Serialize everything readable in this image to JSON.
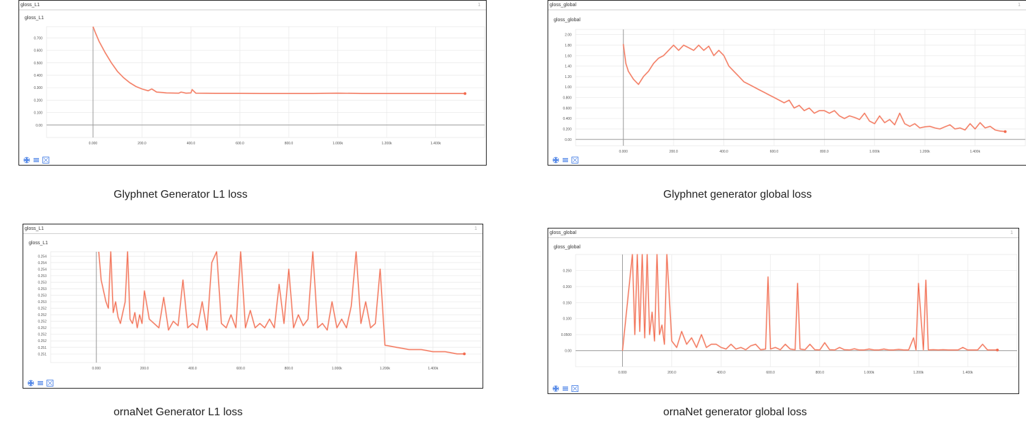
{
  "colors": {
    "line": "#f26a4f",
    "line_faint": "#f9c4b6",
    "grid": "#e8e8e8",
    "axis": "#999999",
    "controls": "#5b8de8"
  },
  "panels": [
    {
      "header": "gloss_L1",
      "index": "1",
      "subtitle": "gloss_L1",
      "caption": "Glyphnet Generator L1 loss"
    },
    {
      "header": "gloss_global",
      "index": "1",
      "subtitle": "gloss_global",
      "caption": "Glyphnet generator global loss"
    },
    {
      "header": "gloss_L1",
      "index": "1",
      "subtitle": "gloss_L1",
      "caption": "ornaNet Generator L1 loss"
    },
    {
      "header": "gloss_global",
      "index": "1",
      "subtitle": "gloss_global",
      "caption": "ornaNet generator global loss"
    }
  ],
  "controls": [
    "expand-icon",
    "list-icon",
    "fit-icon"
  ],
  "chart_data": [
    {
      "type": "line",
      "title": "gloss_L1",
      "x_ticks": [
        "0.000",
        "200.0",
        "400.0",
        "600.0",
        "800.0",
        "1.000k",
        "1.200k",
        "1.400k"
      ],
      "x_tick_values": [
        0,
        200,
        400,
        600,
        800,
        1000,
        1200,
        1400
      ],
      "y_ticks": [
        "0.00",
        "0.100",
        "0.200",
        "0.300",
        "0.400",
        "0.500",
        "0.600",
        "0.700"
      ],
      "y_tick_values": [
        0,
        0.1,
        0.2,
        0.3,
        0.4,
        0.5,
        0.6,
        0.7
      ],
      "xlim": [
        -190,
        1600
      ],
      "ylim": [
        -0.1,
        0.79
      ],
      "grid": true,
      "series": [
        {
          "x": [
            0,
            10,
            25,
            50,
            75,
            100,
            125,
            150,
            175,
            200,
            225,
            240,
            260,
            300,
            350,
            360,
            380,
            400,
            405,
            420,
            500,
            600,
            700,
            800,
            900,
            1000,
            1100,
            1200,
            1300,
            1400,
            1500,
            1520
          ],
          "y": [
            0.79,
            0.74,
            0.67,
            0.58,
            0.5,
            0.43,
            0.38,
            0.34,
            0.31,
            0.29,
            0.275,
            0.29,
            0.265,
            0.258,
            0.256,
            0.265,
            0.256,
            0.258,
            0.285,
            0.256,
            0.255,
            0.255,
            0.254,
            0.254,
            0.254,
            0.256,
            0.254,
            0.254,
            0.254,
            0.254,
            0.254,
            0.253
          ]
        }
      ]
    },
    {
      "type": "line",
      "title": "gloss_global",
      "x_ticks": [
        "0.000",
        "200.0",
        "400.0",
        "600.0",
        "800.0",
        "1.000k",
        "1.200k",
        "1.400k"
      ],
      "x_tick_values": [
        0,
        200,
        400,
        600,
        800,
        1000,
        1200,
        1400
      ],
      "y_ticks": [
        "0.00",
        "0.200",
        "0.400",
        "0.600",
        "0.800",
        "1.00",
        "1.20",
        "1.40",
        "1.60",
        "1.80",
        "2.00"
      ],
      "y_tick_values": [
        0,
        0.2,
        0.4,
        0.6,
        0.8,
        1.0,
        1.2,
        1.4,
        1.6,
        1.8,
        2.0
      ],
      "xlim": [
        -190,
        1600
      ],
      "ylim": [
        -0.12,
        2.1
      ],
      "grid": true,
      "series": [
        {
          "x": [
            0,
            10,
            20,
            40,
            60,
            80,
            100,
            120,
            140,
            160,
            180,
            200,
            220,
            240,
            260,
            280,
            300,
            320,
            340,
            360,
            380,
            400,
            420,
            440,
            460,
            480,
            500,
            520,
            540,
            560,
            580,
            600,
            620,
            640,
            660,
            680,
            700,
            720,
            740,
            760,
            780,
            800,
            820,
            840,
            860,
            880,
            900,
            920,
            940,
            960,
            980,
            1000,
            1020,
            1040,
            1060,
            1080,
            1100,
            1120,
            1140,
            1160,
            1180,
            1200,
            1220,
            1240,
            1260,
            1280,
            1300,
            1320,
            1340,
            1360,
            1380,
            1400,
            1420,
            1440,
            1460,
            1480,
            1500,
            1520
          ],
          "y": [
            1.82,
            1.45,
            1.3,
            1.15,
            1.05,
            1.2,
            1.3,
            1.45,
            1.55,
            1.6,
            1.7,
            1.8,
            1.7,
            1.8,
            1.75,
            1.7,
            1.8,
            1.7,
            1.78,
            1.6,
            1.7,
            1.6,
            1.4,
            1.3,
            1.2,
            1.1,
            1.05,
            1.0,
            0.95,
            0.9,
            0.85,
            0.8,
            0.75,
            0.7,
            0.75,
            0.6,
            0.65,
            0.55,
            0.6,
            0.5,
            0.55,
            0.55,
            0.5,
            0.55,
            0.45,
            0.4,
            0.45,
            0.42,
            0.38,
            0.5,
            0.35,
            0.3,
            0.45,
            0.32,
            0.38,
            0.28,
            0.5,
            0.3,
            0.25,
            0.3,
            0.22,
            0.24,
            0.25,
            0.22,
            0.2,
            0.24,
            0.28,
            0.2,
            0.22,
            0.18,
            0.3,
            0.2,
            0.32,
            0.22,
            0.25,
            0.18,
            0.16,
            0.15
          ]
        }
      ]
    },
    {
      "type": "line",
      "title": "gloss_L1",
      "x_ticks": [
        "0.000",
        "200.0",
        "400.0",
        "600.0",
        "800.0",
        "1.000k",
        "1.200k",
        "1.400k"
      ],
      "x_tick_values": [
        0,
        200,
        400,
        600,
        800,
        1000,
        1200,
        1400
      ],
      "y_ticks": [
        "0.251",
        "0.251",
        "0.252",
        "0.252",
        "0.252",
        "0.252",
        "0.252",
        "0.252",
        "0.253",
        "0.253",
        "0.253",
        "0.253",
        "0.253",
        "0.254",
        "0.254",
        "0.254"
      ],
      "y_tick_values": [
        0.2506,
        0.2509,
        0.2512,
        0.2515,
        0.2518,
        0.2521,
        0.2524,
        0.2527,
        0.253,
        0.2533,
        0.2536,
        0.2539,
        0.2542,
        0.2545,
        0.2548,
        0.2551
      ],
      "xlim": [
        -190,
        1600
      ],
      "ylim": [
        0.2502,
        0.2553
      ],
      "grid": true,
      "series": [
        {
          "x": [
            10,
            20,
            30,
            40,
            50,
            60,
            70,
            80,
            90,
            100,
            110,
            120,
            130,
            140,
            150,
            160,
            170,
            180,
            190,
            200,
            220,
            240,
            260,
            280,
            300,
            320,
            340,
            360,
            380,
            400,
            420,
            440,
            460,
            480,
            500,
            520,
            540,
            560,
            580,
            600,
            620,
            640,
            660,
            680,
            700,
            720,
            740,
            760,
            780,
            800,
            820,
            840,
            860,
            880,
            900,
            920,
            940,
            960,
            980,
            1000,
            1020,
            1040,
            1060,
            1080,
            1100,
            1120,
            1140,
            1160,
            1180,
            1200,
            1250,
            1300,
            1350,
            1400,
            1450,
            1500,
            1530
          ],
          "y": [
            0.2553,
            0.254,
            0.2535,
            0.253,
            0.2527,
            0.2553,
            0.2525,
            0.253,
            0.2523,
            0.252,
            0.2525,
            0.253,
            0.2553,
            0.2522,
            0.252,
            0.2525,
            0.2518,
            0.2524,
            0.252,
            0.2535,
            0.2522,
            0.252,
            0.2518,
            0.2532,
            0.2517,
            0.2521,
            0.2519,
            0.254,
            0.2518,
            0.252,
            0.2518,
            0.253,
            0.2517,
            0.2548,
            0.2553,
            0.252,
            0.2518,
            0.2524,
            0.2518,
            0.2553,
            0.2518,
            0.2526,
            0.2518,
            0.252,
            0.2518,
            0.2522,
            0.2518,
            0.2538,
            0.252,
            0.2545,
            0.2518,
            0.2524,
            0.2519,
            0.2522,
            0.2553,
            0.2518,
            0.252,
            0.2517,
            0.253,
            0.2518,
            0.2522,
            0.2518,
            0.2528,
            0.2553,
            0.252,
            0.253,
            0.2518,
            0.252,
            0.2545,
            0.251,
            0.2509,
            0.2508,
            0.2508,
            0.2507,
            0.2507,
            0.2506,
            0.2506
          ]
        }
      ]
    },
    {
      "type": "line",
      "title": "gloss_global",
      "x_ticks": [
        "0.000",
        "200.0",
        "400.0",
        "600.0",
        "800.0",
        "1.000k",
        "1.200k",
        "1.400k"
      ],
      "x_tick_values": [
        0,
        200,
        400,
        600,
        800,
        1000,
        1200,
        1400
      ],
      "y_ticks": [
        "0.00",
        "0.0500",
        "0.100",
        "0.150",
        "0.200",
        "0.250"
      ],
      "y_tick_values": [
        0,
        0.05,
        0.1,
        0.15,
        0.2,
        0.25
      ],
      "xlim": [
        -190,
        1600
      ],
      "ylim": [
        -0.05,
        0.3
      ],
      "grid": true,
      "series": [
        {
          "x": [
            0,
            40,
            50,
            60,
            70,
            80,
            90,
            100,
            110,
            120,
            130,
            140,
            150,
            160,
            170,
            180,
            200,
            220,
            240,
            260,
            280,
            300,
            320,
            340,
            360,
            380,
            400,
            420,
            440,
            460,
            480,
            500,
            520,
            540,
            560,
            580,
            590,
            600,
            620,
            640,
            660,
            680,
            700,
            710,
            720,
            740,
            760,
            780,
            800,
            820,
            840,
            860,
            880,
            900,
            920,
            940,
            960,
            980,
            1000,
            1020,
            1040,
            1060,
            1080,
            1100,
            1120,
            1140,
            1160,
            1180,
            1190,
            1200,
            1220,
            1230,
            1240,
            1260,
            1280,
            1300,
            1320,
            1340,
            1360,
            1380,
            1400,
            1420,
            1440,
            1460,
            1480,
            1500,
            1520
          ],
          "y": [
            0,
            0.3,
            0.05,
            0.3,
            0.06,
            0.3,
            0.04,
            0.3,
            0.05,
            0.12,
            0.03,
            0.3,
            0.05,
            0.08,
            0.02,
            0.3,
            0.03,
            0.01,
            0.06,
            0.02,
            0.04,
            0.01,
            0.05,
            0.01,
            0.02,
            0.02,
            0.01,
            0.005,
            0.02,
            0.005,
            0.01,
            0.003,
            0.015,
            0.02,
            0.003,
            0.005,
            0.23,
            0.005,
            0.01,
            0.003,
            0.02,
            0.005,
            0.003,
            0.21,
            0.005,
            0.003,
            0.02,
            0.003,
            0.002,
            0.025,
            0.003,
            0.002,
            0.01,
            0.003,
            0.002,
            0.006,
            0.002,
            0.002,
            0.005,
            0.002,
            0.002,
            0.005,
            0.002,
            0.002,
            0.004,
            0.002,
            0.002,
            0.04,
            0.002,
            0.21,
            0.002,
            0.22,
            0.002,
            0.003,
            0.002,
            0.003,
            0.002,
            0.002,
            0.002,
            0.01,
            0.002,
            0.002,
            0.002,
            0.02,
            0.002,
            0.002,
            0.002
          ]
        }
      ]
    }
  ]
}
